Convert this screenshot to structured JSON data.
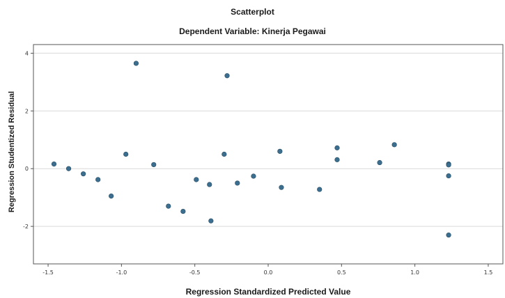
{
  "chart_data": {
    "type": "scatter",
    "title": "Scatterplot",
    "subtitle": "Dependent Variable: Kinerja Pegawai",
    "xlabel": "Regression Standardized Predicted Value",
    "ylabel": "Regression Studentized Residual",
    "xlim": [
      -1.6,
      1.6
    ],
    "ylim": [
      -3.3,
      4.3
    ],
    "xticks": [
      "-1.5",
      "-1.0",
      "-0.5",
      "0.0",
      "0.5",
      "1.0",
      "1.5"
    ],
    "yticks": [
      "4",
      "2",
      "0",
      "-2"
    ],
    "grid_y": [
      -2,
      0,
      2,
      4
    ],
    "grid": true,
    "point_color": "#3b6e8f",
    "points": [
      {
        "x": -1.46,
        "y": 0.16
      },
      {
        "x": -1.36,
        "y": 0.0
      },
      {
        "x": -1.26,
        "y": -0.18
      },
      {
        "x": -1.16,
        "y": -0.38
      },
      {
        "x": -1.07,
        "y": -0.95
      },
      {
        "x": -0.97,
        "y": 0.5
      },
      {
        "x": -0.9,
        "y": 3.65
      },
      {
        "x": -0.78,
        "y": 0.14
      },
      {
        "x": -0.68,
        "y": -1.3
      },
      {
        "x": -0.58,
        "y": -1.48
      },
      {
        "x": -0.49,
        "y": -0.38
      },
      {
        "x": -0.4,
        "y": -0.55
      },
      {
        "x": -0.39,
        "y": -1.81
      },
      {
        "x": -0.3,
        "y": 0.5
      },
      {
        "x": -0.28,
        "y": 3.22
      },
      {
        "x": -0.21,
        "y": -0.5
      },
      {
        "x": -0.1,
        "y": -0.26
      },
      {
        "x": 0.08,
        "y": 0.6
      },
      {
        "x": 0.09,
        "y": -0.65
      },
      {
        "x": 0.35,
        "y": -0.72
      },
      {
        "x": 0.47,
        "y": 0.72
      },
      {
        "x": 0.47,
        "y": 0.31
      },
      {
        "x": 0.76,
        "y": 0.21
      },
      {
        "x": 0.86,
        "y": 0.83
      },
      {
        "x": 1.23,
        "y": 0.16
      },
      {
        "x": 1.23,
        "y": 0.13
      },
      {
        "x": 1.23,
        "y": -0.25
      },
      {
        "x": 1.23,
        "y": -2.3
      }
    ]
  }
}
